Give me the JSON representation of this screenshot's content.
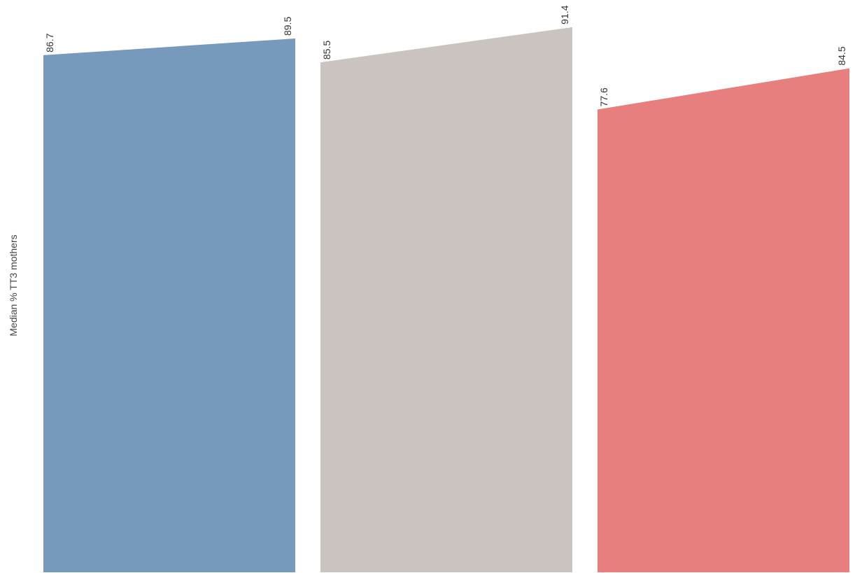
{
  "chart_data": {
    "type": "area",
    "title": "",
    "xlabel": "",
    "ylabel": "Median % TT3 mothers",
    "ylim": [
      0,
      100
    ],
    "grid": false,
    "legend": "none",
    "panels": [
      {
        "values": [
          86.7,
          89.5
        ],
        "labels": [
          "86.7",
          "89.5"
        ],
        "color": "#7799bb"
      },
      {
        "values": [
          85.5,
          91.4
        ],
        "labels": [
          "85.5",
          "91.4"
        ],
        "color": "#cbc3c0"
      },
      {
        "values": [
          77.6,
          84.5
        ],
        "labels": [
          "77.6",
          "84.5"
        ],
        "color": "#e87f7f"
      }
    ]
  }
}
